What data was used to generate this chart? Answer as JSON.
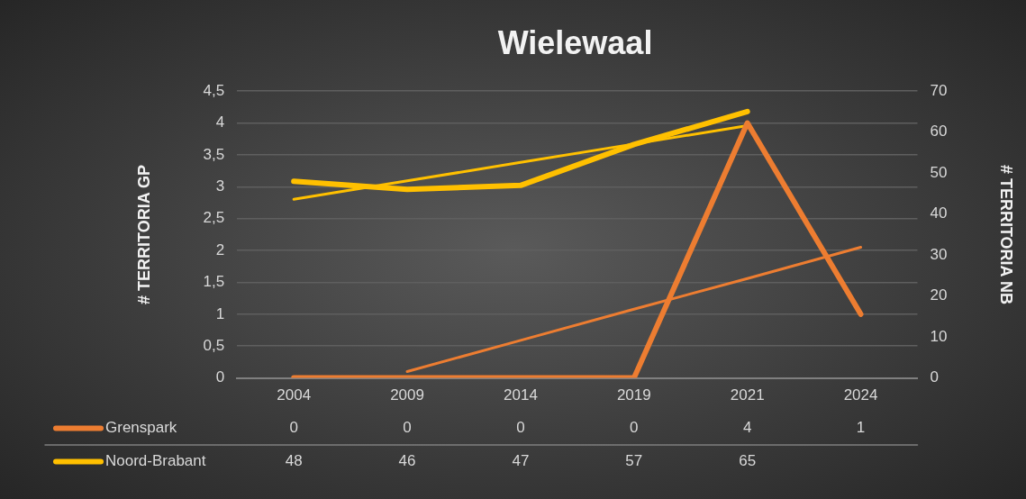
{
  "chart_data": {
    "type": "line",
    "title": "Wielewaal",
    "ylabel": "# TERRITORIA GP",
    "y2label": "# TERRITORIA NB",
    "categories": [
      "2004",
      "2009",
      "2014",
      "2019",
      "2021",
      "2024"
    ],
    "series": [
      {
        "name": "Grenspark",
        "color": "#ed7d31",
        "values": [
          0,
          0,
          0,
          0,
          4,
          1
        ],
        "value_labels": [
          "0",
          "0",
          "0",
          "0",
          "4",
          "1"
        ]
      },
      {
        "name": "Noord-Brabant",
        "color": "#ffc000",
        "axis": "y2",
        "values": [
          48,
          46,
          47,
          57,
          65,
          null
        ],
        "value_labels": [
          "48",
          "46",
          "47",
          "57",
          "65",
          null
        ]
      },
      {
        "type": "line",
        "color": "#ed7d31",
        "values": [
          null,
          0.1,
          0.59,
          1.08,
          1.56,
          2.05
        ]
      },
      {
        "type": "line",
        "color": "#ffc000",
        "axis": "y2",
        "values": [
          43.6,
          48.1,
          52.6,
          57.1,
          61.6,
          null
        ]
      }
    ],
    "ylim": [
      0,
      4.5
    ],
    "yticks": [
      0,
      {
        "value": 0.5,
        "label": "0,5"
      },
      1,
      {
        "value": 1.5,
        "label": "1,5"
      },
      2,
      {
        "value": 2.5,
        "label": "2,5"
      },
      3,
      {
        "value": 3.5,
        "label": "3,5"
      },
      4,
      {
        "value": 4.5,
        "label": "4,5"
      }
    ],
    "y2lim": [
      0,
      70
    ],
    "y2ticks": [
      0,
      10,
      20,
      30,
      40,
      50,
      60,
      70
    ],
    "grid": "y",
    "legend": "bottom",
    "marker": "none",
    "line_style": "solid"
  }
}
